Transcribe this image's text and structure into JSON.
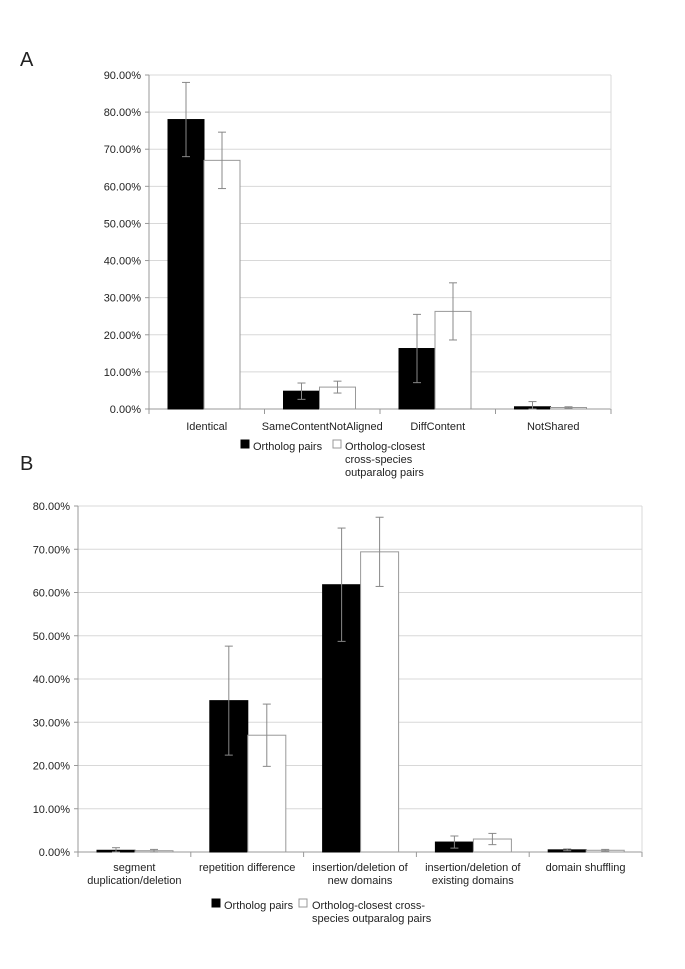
{
  "colors": {
    "series1": "#000000",
    "series2": "#ffffff",
    "grid": "#d8d8d8",
    "axis": "#999999",
    "error": "#888888"
  },
  "chart_data": [
    {
      "panel_label": "A",
      "type": "bar",
      "ylim": [
        0,
        90
      ],
      "yticks": [
        "90.00%",
        "80.00%",
        "70.00%",
        "60.00%",
        "50.00%",
        "40.00%",
        "30.00%",
        "20.00%",
        "10.00%",
        "0.00%"
      ],
      "ytick_values": [
        90,
        80,
        70,
        60,
        50,
        40,
        30,
        20,
        10,
        0
      ],
      "grid": true,
      "legend_position": "bottom",
      "categories": [
        [
          "Identical"
        ],
        [
          "SameContentNotAligned"
        ],
        [
          "DiffContent"
        ],
        [
          "NotShared"
        ]
      ],
      "series": [
        {
          "name_lines": [
            "Ortholog pairs"
          ],
          "values": [
            78.0,
            4.8,
            16.3,
            0.6
          ],
          "errors": [
            10.0,
            2.2,
            9.2,
            1.4
          ]
        },
        {
          "name_lines": [
            "Ortholog-closest",
            "cross-species",
            "outparalog pairs"
          ],
          "values": [
            67.0,
            5.9,
            26.3,
            0.4
          ],
          "errors": [
            7.6,
            1.6,
            7.7,
            0.2
          ]
        }
      ]
    },
    {
      "panel_label": "B",
      "type": "bar",
      "ylim": [
        0,
        80
      ],
      "yticks": [
        "80.00%",
        "70.00%",
        "60.00%",
        "50.00%",
        "40.00%",
        "30.00%",
        "20.00%",
        "10.00%",
        "0.00%"
      ],
      "ytick_values": [
        80,
        70,
        60,
        50,
        40,
        30,
        20,
        10,
        0
      ],
      "grid": true,
      "legend_position": "bottom",
      "categories": [
        [
          "segment",
          "duplication/deletion"
        ],
        [
          "repetition difference"
        ],
        [
          "insertion/deletion of",
          "new domains"
        ],
        [
          "insertion/deletion of",
          "existing domains"
        ],
        [
          "domain shuffling"
        ]
      ],
      "series": [
        {
          "name_lines": [
            "Ortholog pairs"
          ],
          "values": [
            0.4,
            35.0,
            61.8,
            2.3,
            0.5
          ],
          "errors": [
            0.6,
            12.6,
            13.1,
            1.4,
            0.2
          ]
        },
        {
          "name_lines": [
            "Ortholog-closest cross-",
            "species outparalog pairs"
          ],
          "values": [
            0.3,
            27.0,
            69.4,
            3.0,
            0.4
          ],
          "errors": [
            0.3,
            7.2,
            8.0,
            1.3,
            0.2
          ]
        }
      ]
    }
  ]
}
